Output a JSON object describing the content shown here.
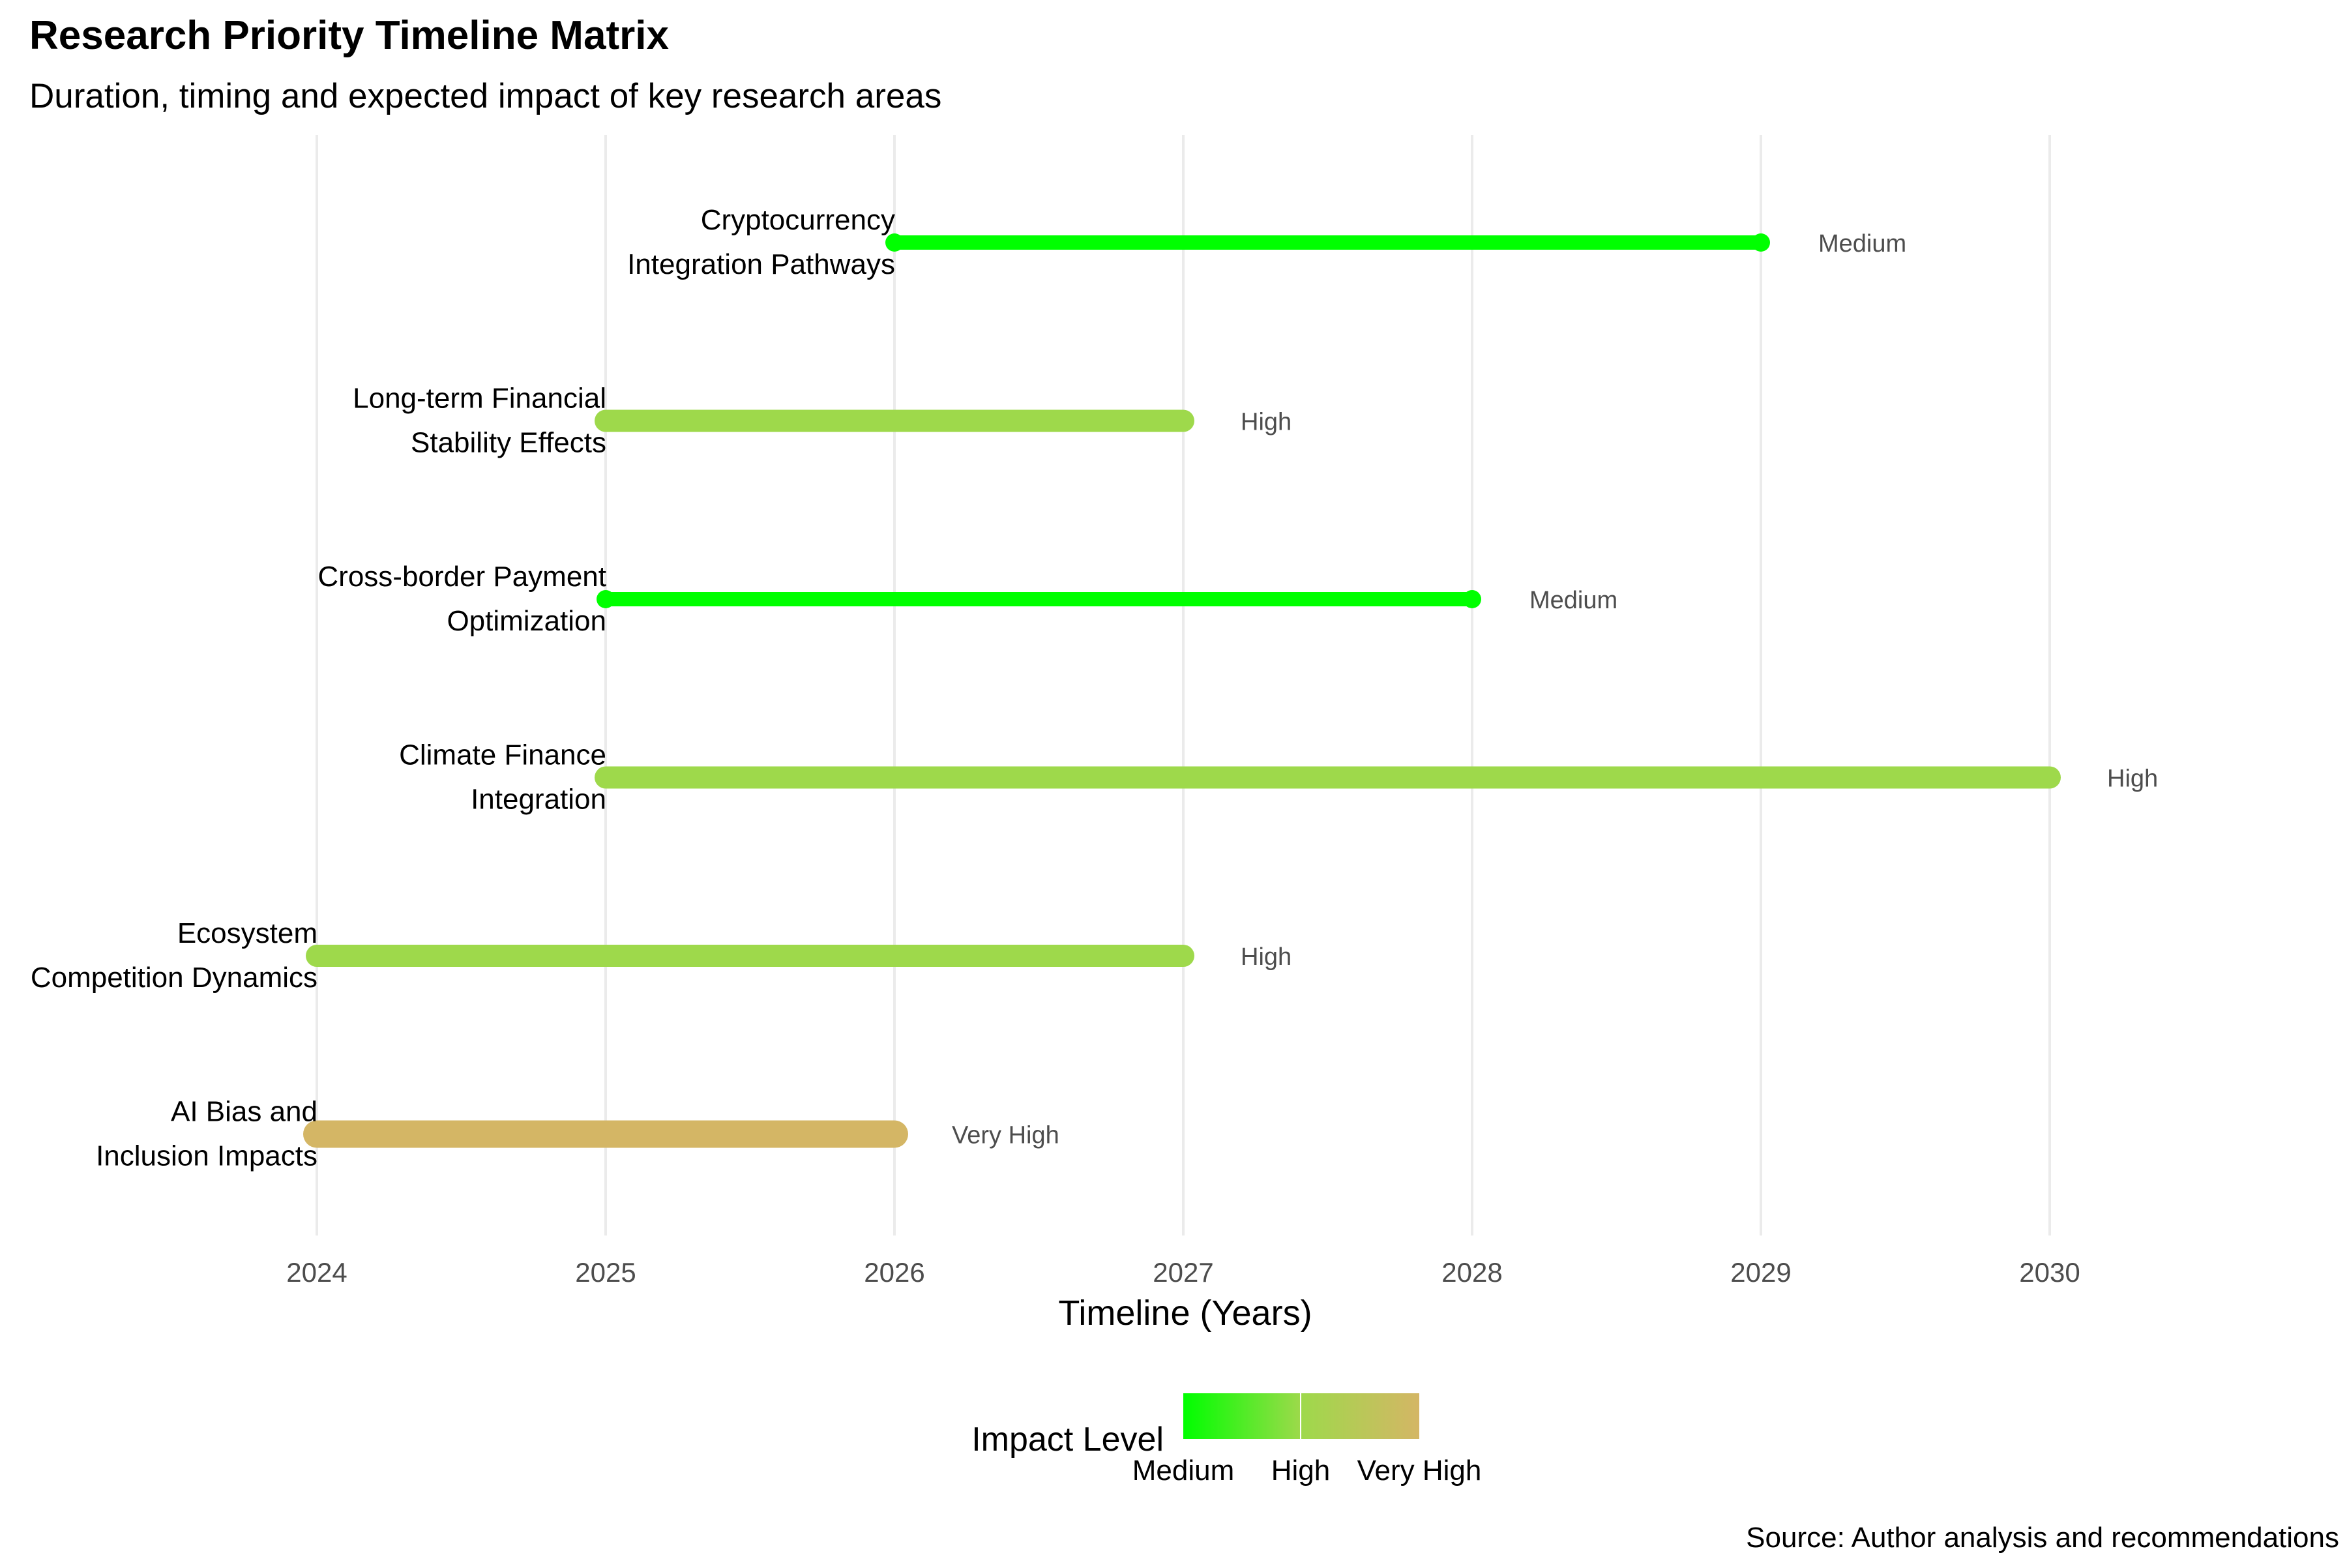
{
  "chart_data": {
    "type": "timeline",
    "title": "Research Priority Timeline Matrix",
    "subtitle": "Duration, timing and expected impact of key research areas",
    "xlabel": "Timeline (Years)",
    "ylabel": "",
    "xlim": [
      2023.5,
      2030.5
    ],
    "x_ticks": [
      "2024",
      "2025",
      "2026",
      "2027",
      "2028",
      "2029",
      "2030"
    ],
    "grid": "vertical major gridlines",
    "items": [
      {
        "label_lines": [
          "Cryptocurrency",
          "Integration Pathways"
        ],
        "start": 2026,
        "end": 2029,
        "impact": "Medium"
      },
      {
        "label_lines": [
          "Long-term Financial",
          "Stability Effects"
        ],
        "start": 2025,
        "end": 2027,
        "impact": "High"
      },
      {
        "label_lines": [
          "Cross-border Payment",
          "Optimization"
        ],
        "start": 2025,
        "end": 2028,
        "impact": "Medium"
      },
      {
        "label_lines": [
          "Climate Finance",
          "Integration"
        ],
        "start": 2025,
        "end": 2030,
        "impact": "High"
      },
      {
        "label_lines": [
          "Ecosystem",
          "Competition Dynamics"
        ],
        "start": 2024,
        "end": 2027,
        "impact": "High"
      },
      {
        "label_lines": [
          "AI Bias and",
          "Inclusion Impacts"
        ],
        "start": 2024,
        "end": 2026,
        "impact": "Very High"
      }
    ],
    "impact_levels": [
      "Medium",
      "High",
      "Very High"
    ],
    "impact_colors": {
      "Medium": "#00ff00",
      "High": "#9ed94b",
      "Very High": "#d4b665"
    },
    "legend": {
      "title": "Impact Level",
      "position": "bottom"
    },
    "caption": "Source: Author analysis and recommendations"
  }
}
